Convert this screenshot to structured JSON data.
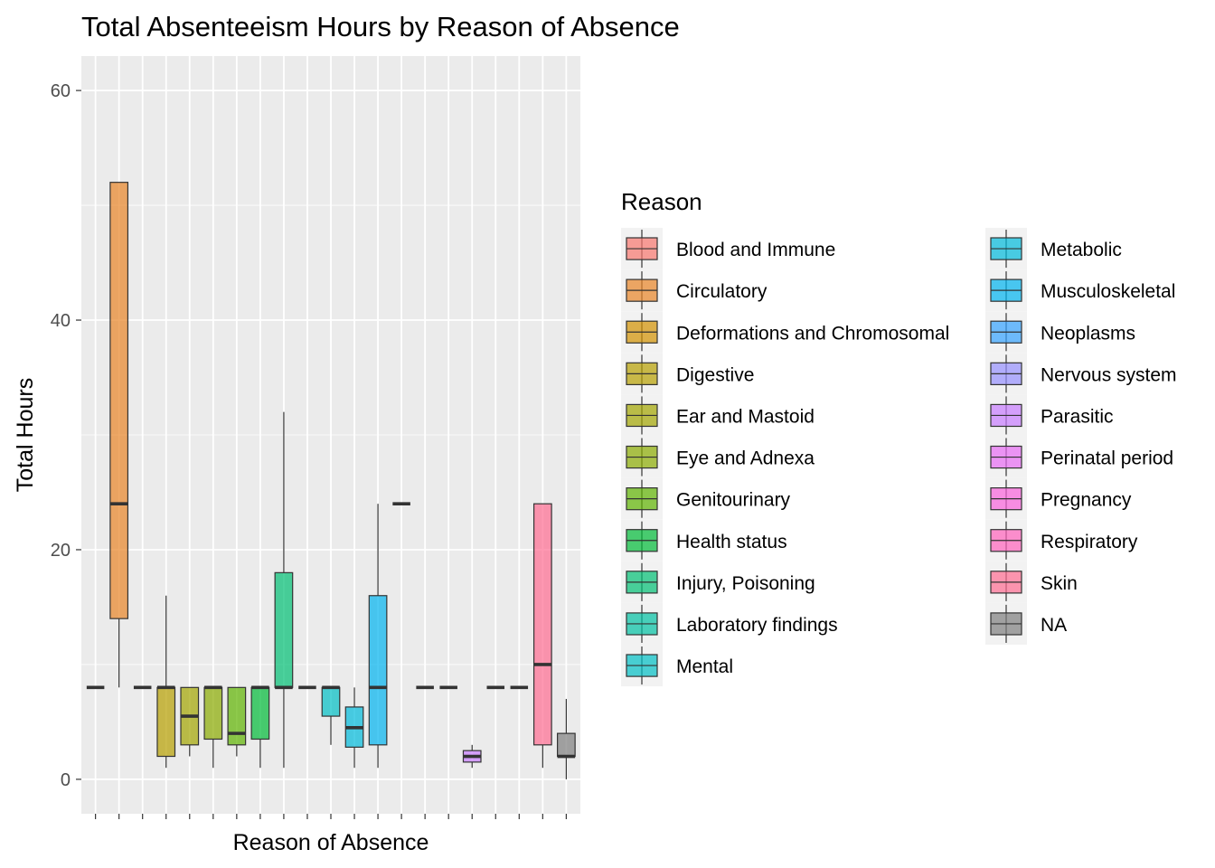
{
  "chart_data": {
    "type": "boxplot",
    "title": "Total Absenteeism Hours by Reason of Absence",
    "xlabel": "Reason of Absence",
    "ylabel": "Total Hours",
    "ylim": [
      -3,
      63
    ],
    "yticks": [
      0,
      20,
      40,
      60
    ],
    "grid": true,
    "legend": {
      "title": "Reason",
      "placement": "right",
      "columns": 2,
      "entries": [
        {
          "name": "Blood and Immune",
          "color": "#F8766D"
        },
        {
          "name": "Circulatory",
          "color": "#E88526"
        },
        {
          "name": "Deformations and Chromosomal",
          "color": "#D39200"
        },
        {
          "name": "Digestive",
          "color": "#B79F00"
        },
        {
          "name": "Ear and Mastoid",
          "color": "#A3A500"
        },
        {
          "name": "Eye and Adnexa",
          "color": "#8AAB00"
        },
        {
          "name": "Genitourinary",
          "color": "#5EB300"
        },
        {
          "name": "Health status",
          "color": "#00BA38"
        },
        {
          "name": "Injury, Poisoning",
          "color": "#00BF74"
        },
        {
          "name": "Laboratory findings",
          "color": "#00C1A3"
        },
        {
          "name": "Mental",
          "color": "#00BFC4"
        },
        {
          "name": "Metabolic",
          "color": "#00BBDB"
        },
        {
          "name": "Musculoskeletal",
          "color": "#00B4EF"
        },
        {
          "name": "Neoplasms",
          "color": "#35A2FF"
        },
        {
          "name": "Nervous system",
          "color": "#9590FF"
        },
        {
          "name": "Parasitic",
          "color": "#C77CFF"
        },
        {
          "name": "Perinatal period",
          "color": "#E76BF3"
        },
        {
          "name": "Pregnancy",
          "color": "#FA62DB"
        },
        {
          "name": "Respiratory",
          "color": "#FF62BC"
        },
        {
          "name": "Skin",
          "color": "#FF6C91"
        },
        {
          "name": "NA",
          "color": "#7F7F7F"
        }
      ]
    },
    "boxes": [
      {
        "color": "#F8766D",
        "min": 8,
        "q1": 8,
        "median": 8,
        "q3": 8,
        "max": 8
      },
      {
        "color": "#E88526",
        "min": 8,
        "q1": 14,
        "median": 24,
        "q3": 52,
        "max": 52
      },
      {
        "color": "#D39200",
        "min": 8,
        "q1": 8,
        "median": 8,
        "q3": 8,
        "max": 8
      },
      {
        "color": "#B79F00",
        "min": 1,
        "q1": 2,
        "median": 8,
        "q3": 8,
        "max": 16
      },
      {
        "color": "#A3A500",
        "min": 2,
        "q1": 3,
        "median": 5.5,
        "q3": 8,
        "max": 8
      },
      {
        "color": "#8AAB00",
        "min": 1,
        "q1": 3.5,
        "median": 8,
        "q3": 8,
        "max": 8
      },
      {
        "color": "#5EB300",
        "min": 2,
        "q1": 3,
        "median": 4,
        "q3": 8,
        "max": 8
      },
      {
        "color": "#00BA38",
        "min": 1,
        "q1": 3.5,
        "median": 8,
        "q3": 8,
        "max": 8
      },
      {
        "color": "#00BF74",
        "min": 1,
        "q1": 8,
        "median": 8,
        "q3": 18,
        "max": 32
      },
      {
        "color": "#00C1A3",
        "min": 8,
        "q1": 8,
        "median": 8,
        "q3": 8,
        "max": 8
      },
      {
        "color": "#00BFC4",
        "min": 3,
        "q1": 5.5,
        "median": 8,
        "q3": 8,
        "max": 8
      },
      {
        "color": "#00BBDB",
        "min": 1,
        "q1": 2.8,
        "median": 4.5,
        "q3": 6.3,
        "max": 8
      },
      {
        "color": "#00B4EF",
        "min": 1,
        "q1": 3,
        "median": 8,
        "q3": 16,
        "max": 24
      },
      {
        "color": "#35A2FF",
        "min": 24,
        "q1": 24,
        "median": 24,
        "q3": 24,
        "max": 24
      },
      {
        "color": "#9590FF",
        "min": 8,
        "q1": 8,
        "median": 8,
        "q3": 8,
        "max": 8
      },
      {
        "color": "#B983FF",
        "min": 8,
        "q1": 8,
        "median": 8,
        "q3": 8,
        "max": 8
      },
      {
        "color": "#C77CFF",
        "min": 1,
        "q1": 1.5,
        "median": 2,
        "q3": 2.5,
        "max": 3
      },
      {
        "color": "#E76BF3",
        "min": 8,
        "q1": 8,
        "median": 8,
        "q3": 8,
        "max": 8
      },
      {
        "color": "#FA62DB",
        "min": 8,
        "q1": 8,
        "median": 8,
        "q3": 8,
        "max": 8
      },
      {
        "color": "#FF6C91",
        "min": 1,
        "q1": 3,
        "median": 10,
        "q3": 24,
        "max": 24
      },
      {
        "color": "#7F7F7F",
        "min": 0,
        "q1": 2,
        "median": 2,
        "q3": 4,
        "max": 7
      }
    ]
  }
}
